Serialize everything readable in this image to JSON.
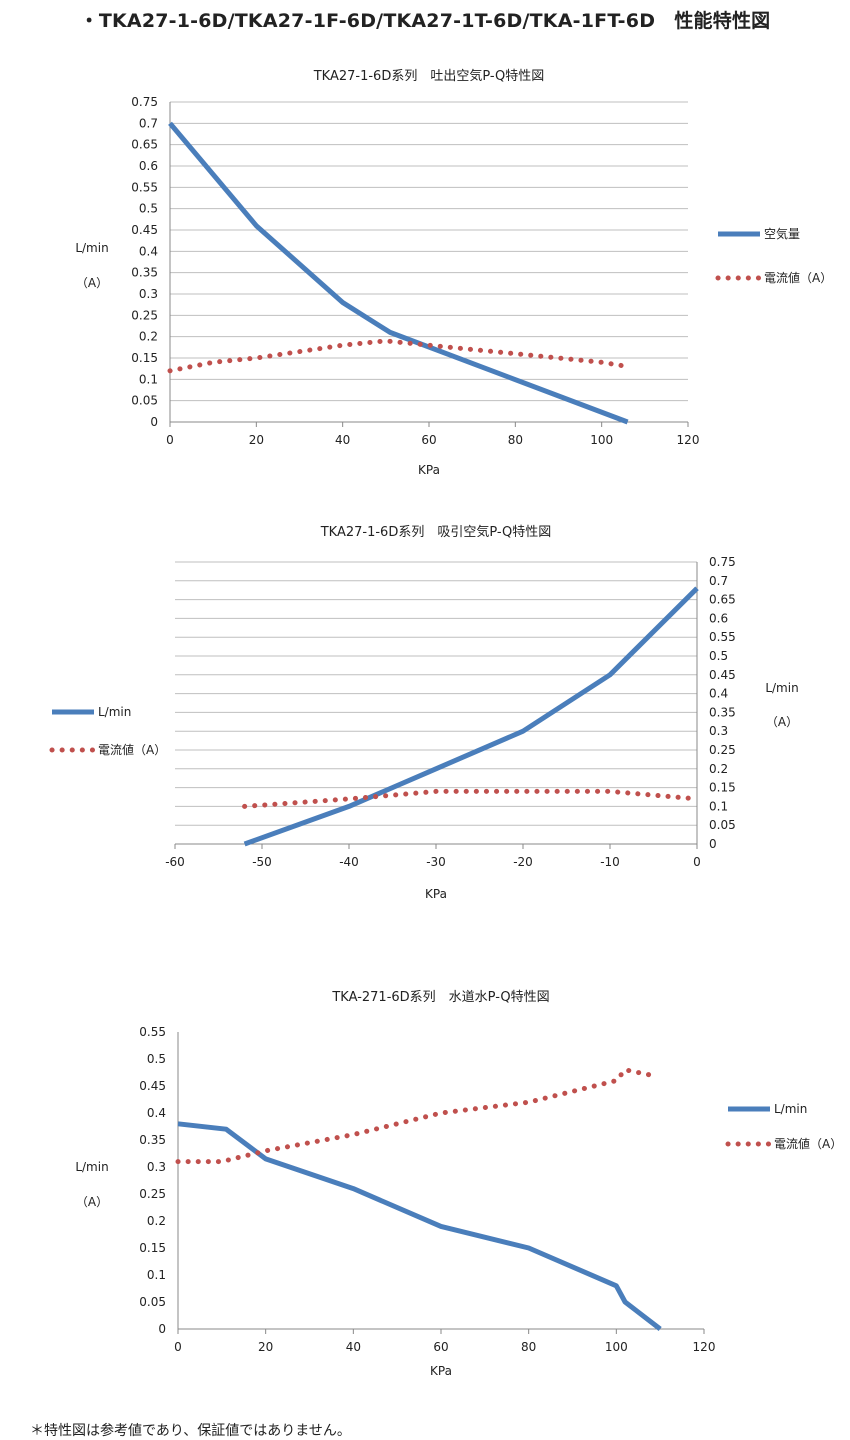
{
  "page": {
    "title": "・TKA27-1-6D/TKA27-1F-6D/TKA27-1T-6D/TKA-1FT-6D　性能特性図",
    "footnote": "＊特性図は参考値であり、保証値ではありません。"
  },
  "colors": {
    "flow": "#4a7ebb",
    "current": "#c0504d",
    "grid": "#bfbfbf",
    "axis": "#888888"
  },
  "chart_data": [
    {
      "type": "line",
      "title": "TKA27-1-6D系列　吐出空気P-Q特性図",
      "xlabel": "KPa",
      "ylabel": "L/min",
      "ylabel2": "（A）",
      "xlim": [
        0,
        120
      ],
      "xticks": [
        0,
        20,
        40,
        60,
        80,
        100,
        120
      ],
      "ylim": [
        0,
        0.75
      ],
      "yticks": [
        0,
        0.05,
        0.1,
        0.15,
        0.2,
        0.25,
        0.3,
        0.35,
        0.4,
        0.45,
        0.5,
        0.55,
        0.6,
        0.65,
        0.7,
        0.75
      ],
      "yaxis_side": "left",
      "grid": true,
      "legend_position": "right",
      "series": [
        {
          "name": "空気量",
          "style": "solid",
          "x": [
            0,
            20,
            40,
            51,
            106
          ],
          "y": [
            0.7,
            0.46,
            0.28,
            0.21,
            0.0
          ]
        },
        {
          "name": "電流値（A）",
          "style": "dotted",
          "x": [
            0,
            10,
            20,
            30,
            40,
            50,
            60,
            70,
            80,
            90,
            100,
            106
          ],
          "y": [
            0.12,
            0.14,
            0.15,
            0.165,
            0.18,
            0.19,
            0.18,
            0.17,
            0.16,
            0.15,
            0.14,
            0.13
          ]
        }
      ]
    },
    {
      "type": "line",
      "title": "TKA27-1-6D系列　吸引空気P-Q特性図",
      "xlabel": "KPa",
      "ylabel": "L/min",
      "ylabel2": "（A）",
      "xlim": [
        -60,
        0
      ],
      "xticks": [
        -60,
        -50,
        -40,
        -30,
        -20,
        -10,
        0
      ],
      "ylim": [
        0,
        0.75
      ],
      "yticks": [
        0,
        0.05,
        0.1,
        0.15,
        0.2,
        0.25,
        0.3,
        0.35,
        0.4,
        0.45,
        0.5,
        0.55,
        0.6,
        0.65,
        0.7,
        0.75
      ],
      "yaxis_side": "right",
      "grid": true,
      "legend_position": "left",
      "series": [
        {
          "name": "L/min",
          "style": "solid",
          "x": [
            -52,
            -40,
            -30,
            -20,
            -10,
            0
          ],
          "y": [
            0.0,
            0.1,
            0.2,
            0.3,
            0.45,
            0.68
          ]
        },
        {
          "name": "電流値（A）",
          "style": "dotted",
          "x": [
            -52,
            -40,
            -30,
            -20,
            -10,
            0
          ],
          "y": [
            0.1,
            0.12,
            0.14,
            0.14,
            0.14,
            0.12
          ]
        }
      ]
    },
    {
      "type": "line",
      "title": "TKA-271-6D系列　水道水P-Q特性図",
      "xlabel": "KPa",
      "ylabel": "L/min",
      "ylabel2": "（A）",
      "xlim": [
        0,
        120
      ],
      "xticks": [
        0,
        20,
        40,
        60,
        80,
        100,
        120
      ],
      "ylim": [
        0,
        0.55
      ],
      "yticks": [
        0,
        0.05,
        0.1,
        0.15,
        0.2,
        0.25,
        0.3,
        0.35,
        0.4,
        0.45,
        0.5,
        0.55
      ],
      "yaxis_side": "left",
      "grid": false,
      "legend_position": "right",
      "series": [
        {
          "name": "L/min",
          "style": "solid",
          "x": [
            0,
            11,
            20,
            40,
            60,
            80,
            100,
            102,
            110
          ],
          "y": [
            0.38,
            0.37,
            0.315,
            0.26,
            0.19,
            0.15,
            0.08,
            0.05,
            0.0
          ]
        },
        {
          "name": "電流値（A）",
          "style": "dotted",
          "x": [
            0,
            10,
            20,
            30,
            40,
            50,
            60,
            70,
            80,
            90,
            100,
            102,
            108
          ],
          "y": [
            0.31,
            0.31,
            0.33,
            0.345,
            0.36,
            0.38,
            0.4,
            0.41,
            0.42,
            0.44,
            0.46,
            0.48,
            0.47
          ]
        }
      ]
    }
  ]
}
